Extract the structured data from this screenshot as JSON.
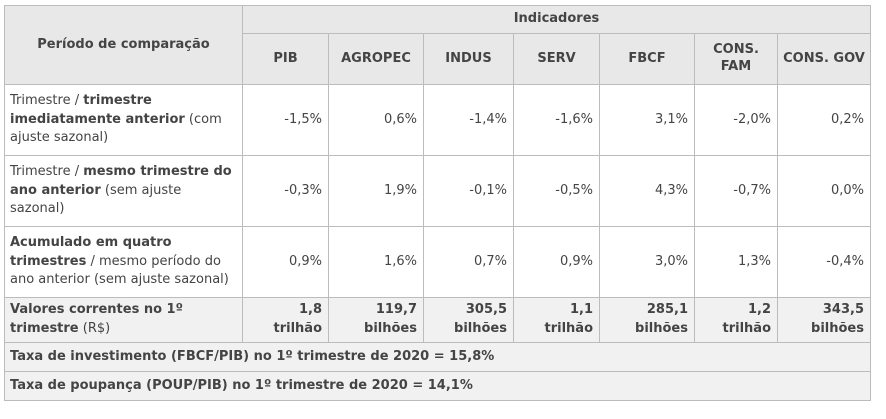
{
  "header": {
    "period_label": "Período de comparação",
    "group_label": "Indicadores",
    "columns": [
      "PIB",
      "AGROPEC",
      "INDUS",
      "SERV",
      "FBCF",
      "CONS. FAM",
      "CONS. GOV"
    ]
  },
  "rows": [
    {
      "label_parts": [
        "Trimestre / ",
        "trimestre imediatamente anterior",
        " (com ajuste sazonal)"
      ],
      "values": [
        "-1,5%",
        "0,6%",
        "-1,4%",
        "-1,6%",
        "3,1%",
        "-2,0%",
        "0,2%"
      ]
    },
    {
      "label_parts": [
        "Trimestre / ",
        "mesmo trimestre do ano anterior",
        " (sem ajuste sazonal)"
      ],
      "values": [
        "-0,3%",
        "1,9%",
        "-0,1%",
        "-0,5%",
        "4,3%",
        "-0,7%",
        "0,0%"
      ]
    },
    {
      "label_parts": [
        "Acumulado em quatro trimestres",
        " / mesmo período do ano anterior (sem ajuste sazonal)"
      ],
      "values": [
        "0,9%",
        "1,6%",
        "0,7%",
        "0,9%",
        "3,0%",
        "1,3%",
        "-0,4%"
      ]
    }
  ],
  "values_row": {
    "label_bold": "Valores correntes no 1º trimestre",
    "label_plain": " (R$)",
    "values": [
      "1,8 trilhão",
      "119,7 bilhões",
      "305,5 bilhões",
      "1,1 trilhão",
      "285,1 bilhões",
      "1,2 trilhão",
      "343,5 bilhões"
    ]
  },
  "notes": [
    "Taxa de investimento (FBCF/PIB) no 1º trimestre de 2020 = 15,8%",
    "Taxa de poupança (POUP/PIB) no 1º trimestre de 2020 = 14,1%"
  ]
}
